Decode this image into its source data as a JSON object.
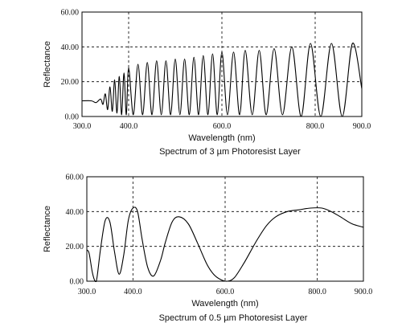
{
  "chart_data": [
    {
      "type": "line",
      "title": "Spectrum of 3 µm Photoresist Layer",
      "xlabel": "Wavelength (nm)",
      "ylabel": "Reflectance",
      "xlim": [
        300,
        900
      ],
      "ylim": [
        0,
        60
      ],
      "x_ticks": [
        "300.0",
        "400.0",
        "600.0",
        "800.0",
        "900.0"
      ],
      "y_ticks": [
        "60.00",
        "40.00",
        "20.00",
        "0.00"
      ],
      "grid": "dashed",
      "legend": "none",
      "series": [
        {
          "line_color": "#000000",
          "x": [
            300,
            320,
            330,
            340,
            345,
            350,
            355,
            360,
            365,
            370,
            375,
            380,
            385,
            390,
            395,
            400,
            410,
            420,
            430,
            440,
            450,
            460,
            470,
            480,
            490,
            500,
            510,
            520,
            530,
            540,
            550,
            560,
            570,
            580,
            590,
            600,
            612,
            625,
            638,
            650,
            665,
            680,
            695,
            712,
            730,
            750,
            770,
            790,
            812,
            835,
            858,
            880,
            900
          ],
          "y": [
            9,
            9,
            8,
            10,
            7,
            13,
            4,
            17,
            3,
            21,
            2,
            23,
            1,
            25,
            1,
            28,
            1,
            30,
            1,
            31,
            1,
            32,
            1,
            32,
            1,
            33,
            1,
            33,
            1,
            34,
            1,
            35,
            1,
            36,
            1,
            37,
            1,
            37,
            1,
            38,
            1,
            38,
            1,
            39,
            1,
            40,
            0,
            42,
            0,
            42,
            0,
            42,
            16
          ]
        }
      ]
    },
    {
      "type": "line",
      "title": "Spectrum of 0.5 µm Photoresist Layer",
      "xlabel": "Wavelength (nm)",
      "ylabel": "Reflectance",
      "xlim": [
        300,
        900
      ],
      "ylim": [
        0,
        60
      ],
      "x_ticks": [
        "300.0",
        "400.0",
        "600.0",
        "800.0",
        "900.0"
      ],
      "y_ticks": [
        "60.00",
        "40.00",
        "20.00",
        "0.00"
      ],
      "grid": "dashed",
      "legend": "none",
      "series": [
        {
          "line_color": "#000000",
          "x": [
            300,
            305,
            312,
            318,
            322,
            330,
            340,
            350,
            360,
            370,
            380,
            390,
            400,
            410,
            420,
            432,
            445,
            460,
            470,
            485,
            500,
            520,
            540,
            560,
            575,
            590,
            605,
            620,
            640,
            655,
            670,
            690,
            710,
            735,
            760,
            785,
            810,
            830,
            850,
            875,
            900
          ],
          "y": [
            18,
            16,
            5,
            0,
            2,
            19,
            35,
            34,
            17,
            4,
            15,
            35,
            42,
            40,
            24,
            8,
            3,
            12,
            22,
            34,
            37,
            33,
            22,
            10,
            4,
            1,
            0,
            2,
            10,
            17,
            24,
            32,
            37,
            40,
            41,
            42,
            42,
            40,
            37,
            33,
            31
          ]
        }
      ]
    }
  ]
}
